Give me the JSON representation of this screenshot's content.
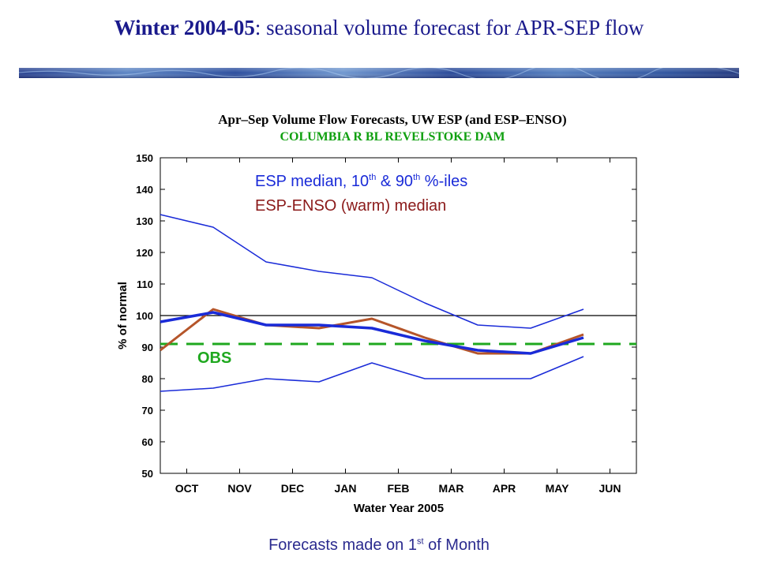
{
  "slide": {
    "title_bold": "Winter 2004-05",
    "title_rest": ": seasonal volume forecast for APR-SEP flow",
    "caption_pre": "Forecasts made on 1",
    "caption_sup": "st",
    "caption_post": " of Month"
  },
  "colors": {
    "title": "#1a1a8c",
    "esp": "#1a2bd8",
    "enso": "#b5552a",
    "obs": "#1fa81f",
    "subtitle": "#10a010"
  },
  "chart_data": {
    "type": "line",
    "title": "Apr–Sep Volume Flow Forecasts, UW ESP (and ESP–ENSO)",
    "subtitle": "COLUMBIA R BL REVELSTOKE DAM",
    "xlabel": "Water Year 2005",
    "ylabel": "% of normal",
    "categories": [
      "OCT",
      "NOV",
      "DEC",
      "JAN",
      "FEB",
      "MAR",
      "APR",
      "MAY",
      "JUN"
    ],
    "ylim": [
      50,
      150
    ],
    "yticks": [
      50,
      60,
      70,
      80,
      90,
      100,
      110,
      120,
      130,
      140,
      150
    ],
    "reference_line": 100,
    "legend": {
      "esp_pre": "ESP median, 10",
      "esp_sup1": "th",
      "esp_mid": " & 90",
      "esp_sup2": "th",
      "esp_post": "  %-iles",
      "enso": "ESP-ENSO (warm) median"
    },
    "obs": {
      "label": "OBS",
      "value": 91
    },
    "series": [
      {
        "key": "esp_p90",
        "values": [
          132,
          128,
          117,
          114,
          112,
          104,
          97,
          96,
          102
        ]
      },
      {
        "key": "esp_median",
        "values": [
          98,
          101,
          97,
          97,
          96,
          92,
          89,
          88,
          93
        ]
      },
      {
        "key": "esp_enso_median",
        "values": [
          89,
          102,
          97,
          96,
          99,
          93,
          88,
          88,
          94
        ]
      },
      {
        "key": "esp_p10",
        "values": [
          76,
          77,
          80,
          79,
          85,
          80,
          80,
          80,
          87
        ]
      }
    ]
  }
}
